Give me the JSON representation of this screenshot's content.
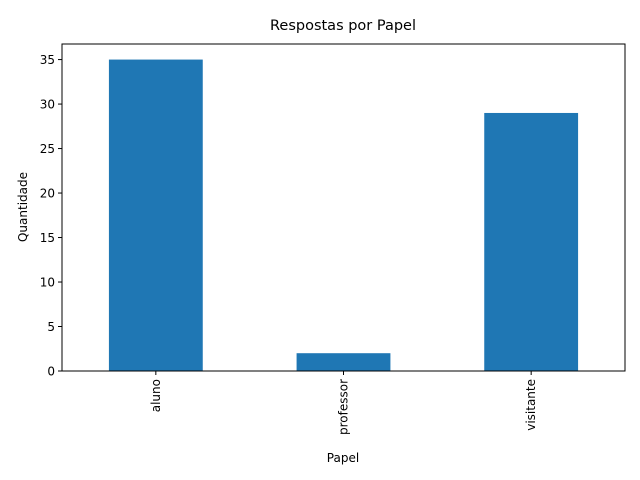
{
  "chart_data": {
    "type": "bar",
    "title": "Respostas por Papel",
    "xlabel": "Papel",
    "ylabel": "Quantidade",
    "categories": [
      "aluno",
      "professor",
      "visitante"
    ],
    "values": [
      35,
      2,
      29
    ],
    "ylim": [
      0,
      36.75
    ],
    "yticks": [
      0,
      5,
      10,
      15,
      20,
      25,
      30,
      35
    ],
    "grid": false,
    "bar_color": "#1f77b4"
  }
}
